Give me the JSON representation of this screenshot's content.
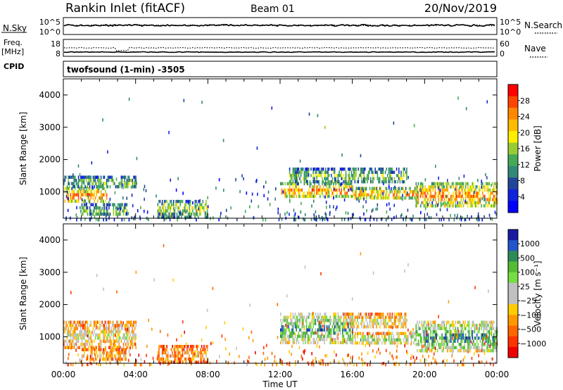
{
  "header": {
    "station": "Rankin Inlet (fitACF)",
    "beam": "Beam 01",
    "date": "20/Nov/2019"
  },
  "top_panels": {
    "nsky_label": "N.Sky",
    "nsky_ticks": [
      "10^5",
      "10^0"
    ],
    "nsearch_label": "N.Search",
    "nsearch_ticks": [
      "10^5",
      "10^0"
    ],
    "freq_label_1": "Freq.",
    "freq_label_2": "[MHz]",
    "freq_ticks": [
      "18",
      "8"
    ],
    "nave_label": "Nave",
    "nave_ticks": [
      "60",
      "0"
    ],
    "cpid_label": "CPID",
    "cpid_text": "twofsound (1-min) -3505"
  },
  "chart_data": [
    {
      "type": "heatmap",
      "name": "power-panel",
      "ylabel": "Slant Range [km]",
      "yticks": [
        "4000",
        "3000",
        "2000",
        "1000"
      ],
      "yrange": [
        180,
        4500
      ],
      "xlim_hours": [
        0,
        24
      ],
      "xticks": [
        "00:00",
        "04:00",
        "08:00",
        "12:00",
        "16:00",
        "20:00",
        "00:00"
      ],
      "colorbar": {
        "label": "Power [dB]",
        "ticks": [
          "28",
          "24",
          "20",
          "16",
          "12",
          "8",
          "4"
        ],
        "colors": [
          "#ff0000",
          "#ff4400",
          "#ff8800",
          "#ffbb00",
          "#ffee00",
          "#99cc33",
          "#44aa55",
          "#338877",
          "#224499",
          "#1122dd",
          "#0000ff"
        ]
      },
      "bands": [
        {
          "t0": 0.0,
          "t1": 2.4,
          "r0": 700,
          "r1": 1150,
          "level": 0.85
        },
        {
          "t0": 0.0,
          "t1": 4.0,
          "r0": 1150,
          "r1": 1500,
          "level": 0.45
        },
        {
          "t0": 1.0,
          "t1": 3.5,
          "r0": 300,
          "r1": 650,
          "level": 0.5
        },
        {
          "t0": 5.2,
          "t1": 8.0,
          "r0": 250,
          "r1": 750,
          "level": 0.55
        },
        {
          "t0": 12.0,
          "t1": 16.0,
          "r0": 850,
          "r1": 1300,
          "level": 0.8
        },
        {
          "t0": 12.5,
          "t1": 19.0,
          "r0": 1300,
          "r1": 1750,
          "level": 0.45
        },
        {
          "t0": 16.0,
          "t1": 19.5,
          "r0": 800,
          "r1": 1150,
          "level": 0.75
        },
        {
          "t0": 19.5,
          "t1": 24.0,
          "r0": 550,
          "r1": 1300,
          "level": 0.8
        }
      ],
      "scatter_density": [
        0.2,
        0.22,
        0.25,
        0.22,
        0.15,
        0.12,
        0.12,
        0.1,
        0.1,
        0.08,
        0.12,
        0.14,
        0.2,
        0.25,
        0.25,
        0.22,
        0.2,
        0.2,
        0.2,
        0.2,
        0.22,
        0.2,
        0.18,
        0.2
      ]
    },
    {
      "type": "heatmap",
      "name": "velocity-panel",
      "ylabel": "Slant Range [km]",
      "yticks": [
        "4000",
        "3000",
        "2000",
        "1000"
      ],
      "yrange": [
        180,
        4500
      ],
      "xlim_hours": [
        0,
        24
      ],
      "xticks": [
        "00:00",
        "04:00",
        "08:00",
        "12:00",
        "16:00",
        "20:00",
        "00:00"
      ],
      "xlabel": "Time UT",
      "colorbar": {
        "label": "Velocity [m s⁻¹]",
        "ticks": [
          "1000",
          "500",
          "100",
          "25",
          "−25",
          "−100",
          "−500",
          "−1000"
        ],
        "colors": [
          "#1a1aa0",
          "#2255cc",
          "#2e8b57",
          "#55bb33",
          "#77dd44",
          "#c0c0c0",
          "#c0c0c0",
          "#ffcc00",
          "#ff9900",
          "#ff6600",
          "#ff3300",
          "#ee0000"
        ]
      },
      "bands": [
        {
          "t0": 0.0,
          "t1": 4.0,
          "r0": 700,
          "r1": 1500,
          "level": 0.5
        },
        {
          "t0": 1.0,
          "t1": 3.5,
          "r0": 300,
          "r1": 650,
          "level": 0.4
        },
        {
          "t0": 5.2,
          "t1": 8.0,
          "r0": 250,
          "r1": 750,
          "level": 0.35
        },
        {
          "t0": 12.0,
          "t1": 16.0,
          "r0": 850,
          "r1": 1750,
          "level": 0.8
        },
        {
          "t0": 15.5,
          "t1": 19.0,
          "r0": 1300,
          "r1": 1750,
          "level": 0.5
        },
        {
          "t0": 16.0,
          "t1": 19.5,
          "r0": 800,
          "r1": 1150,
          "level": 0.65
        },
        {
          "t0": 19.5,
          "t1": 24.0,
          "r0": 550,
          "r1": 1500,
          "level": 0.82
        }
      ],
      "scatter_density": [
        0.2,
        0.22,
        0.25,
        0.22,
        0.15,
        0.12,
        0.12,
        0.1,
        0.1,
        0.08,
        0.12,
        0.14,
        0.2,
        0.25,
        0.25,
        0.22,
        0.2,
        0.2,
        0.2,
        0.2,
        0.22,
        0.2,
        0.18,
        0.2
      ]
    }
  ]
}
